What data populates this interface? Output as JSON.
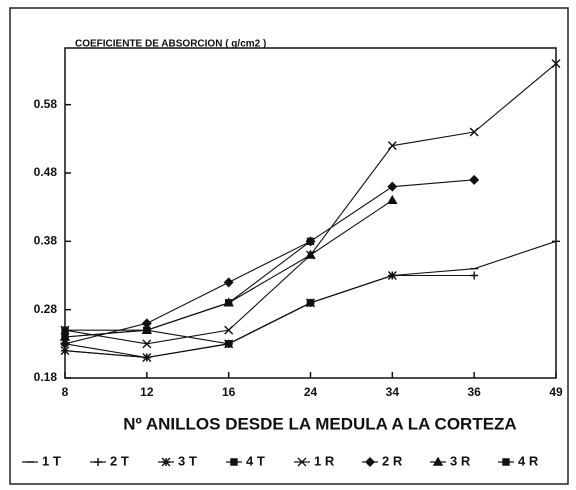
{
  "chart_data": {
    "type": "line",
    "title": "COEFICIENTE DE ABSORCION ( g/cm2 )",
    "x_label": "Nº ANILLOS DESDE LA MEDULA A LA CORTEZA",
    "categories": [
      "8",
      "12",
      "16",
      "24",
      "34",
      "36",
      "49"
    ],
    "ylim": [
      0.18,
      0.66
    ],
    "yticks": [
      0.18,
      0.28,
      0.38,
      0.48,
      0.58
    ],
    "series": [
      {
        "name": "1 T",
        "color": "#111111",
        "marker": "dash",
        "values": [
          0.23,
          0.21,
          0.23,
          0.29,
          0.33,
          0.34,
          0.38
        ]
      },
      {
        "name": "2 T",
        "color": "#111111",
        "marker": "plus",
        "values": [
          0.22,
          0.21,
          0.23,
          0.29,
          0.33,
          0.33,
          null
        ]
      },
      {
        "name": "3 T",
        "color": "#111111",
        "marker": "star",
        "values": [
          0.22,
          0.21,
          0.23,
          0.29,
          0.33,
          null,
          null
        ]
      },
      {
        "name": "4 T",
        "color": "#111111",
        "marker": "square",
        "values": [
          0.24,
          0.25,
          0.23,
          0.29,
          null,
          null,
          null
        ]
      },
      {
        "name": "1 R",
        "color": "#111111",
        "marker": "x",
        "values": [
          0.25,
          0.23,
          0.25,
          0.36,
          0.52,
          0.54,
          0.64
        ]
      },
      {
        "name": "2 R",
        "color": "#111111",
        "marker": "diamond",
        "values": [
          0.23,
          0.26,
          0.32,
          0.38,
          0.46,
          0.47,
          null
        ]
      },
      {
        "name": "3 R",
        "color": "#111111",
        "marker": "triangle",
        "values": [
          0.24,
          0.25,
          0.29,
          0.36,
          0.44,
          null,
          null
        ]
      },
      {
        "name": "4 R",
        "color": "#111111",
        "marker": "square",
        "values": [
          0.25,
          0.25,
          0.29,
          0.38,
          null,
          null,
          null
        ]
      }
    ]
  }
}
